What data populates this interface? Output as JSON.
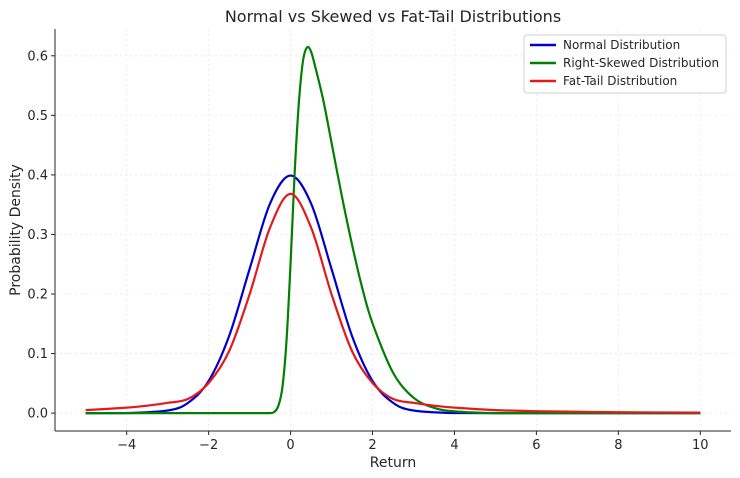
{
  "chart_data": {
    "type": "line",
    "title": "Normal vs Skewed vs Fat-Tail Distributions",
    "xlabel": "Return",
    "ylabel": "Probability Density",
    "xlim": [
      -5.75,
      10.75
    ],
    "ylim": [
      -0.03,
      0.645
    ],
    "xticks": [
      -4,
      -2,
      0,
      2,
      4,
      6,
      8,
      10
    ],
    "xtick_labels": [
      "−4",
      "−2",
      "0",
      "2",
      "4",
      "6",
      "8",
      "10"
    ],
    "yticks": [
      0.0,
      0.1,
      0.2,
      0.3,
      0.4,
      0.5,
      0.6
    ],
    "ytick_labels": [
      "0.0",
      "0.1",
      "0.2",
      "0.3",
      "0.4",
      "0.5",
      "0.6"
    ],
    "grid": true,
    "legend_position": "top-right",
    "series": [
      {
        "name": "Normal Distribution",
        "color": "#0000cc",
        "x": [
          -5,
          -4,
          -3,
          -2.5,
          -2,
          -1.5,
          -1,
          -0.5,
          0,
          0.5,
          1,
          1.5,
          2,
          2.5,
          3,
          4,
          5,
          6,
          8,
          10
        ],
        "y": [
          0.0,
          0.0001,
          0.0044,
          0.0175,
          0.054,
          0.1295,
          0.242,
          0.3521,
          0.3989,
          0.3521,
          0.242,
          0.1295,
          0.054,
          0.0175,
          0.0044,
          0.0001,
          0.0,
          0.0,
          0.0,
          0.0
        ]
      },
      {
        "name": "Right-Skewed Distribution",
        "color": "#007f00",
        "x": [
          -5,
          -1,
          -0.75,
          -0.5,
          -0.4,
          -0.3,
          -0.2,
          -0.1,
          0,
          0.1,
          0.2,
          0.3,
          0.4,
          0.5,
          0.6,
          0.8,
          1,
          1.25,
          1.5,
          1.75,
          2,
          2.5,
          3,
          3.5,
          4,
          5,
          6,
          8,
          10
        ],
        "y": [
          0.0,
          0.0,
          0.0,
          0.0,
          0.002,
          0.012,
          0.043,
          0.121,
          0.252,
          0.404,
          0.519,
          0.59,
          0.614,
          0.607,
          0.582,
          0.525,
          0.454,
          0.365,
          0.283,
          0.21,
          0.151,
          0.068,
          0.026,
          0.009,
          0.003,
          0.0,
          0.0,
          0.0,
          0.0
        ]
      },
      {
        "name": "Fat-Tail Distribution",
        "color": "#e31a1c",
        "x": [
          -5,
          -4,
          -3.5,
          -3,
          -2.5,
          -2,
          -1.5,
          -1,
          -0.5,
          0,
          0.5,
          1,
          1.5,
          2,
          2.5,
          3,
          3.5,
          4,
          5,
          6,
          7,
          8,
          10
        ],
        "y": [
          0.0051,
          0.0092,
          0.0125,
          0.0173,
          0.0239,
          0.0506,
          0.1041,
          0.1995,
          0.3118,
          0.3681,
          0.3118,
          0.1995,
          0.1041,
          0.0506,
          0.0239,
          0.0173,
          0.0125,
          0.0092,
          0.0051,
          0.0033,
          0.0023,
          0.0015,
          0.0008
        ]
      }
    ]
  }
}
